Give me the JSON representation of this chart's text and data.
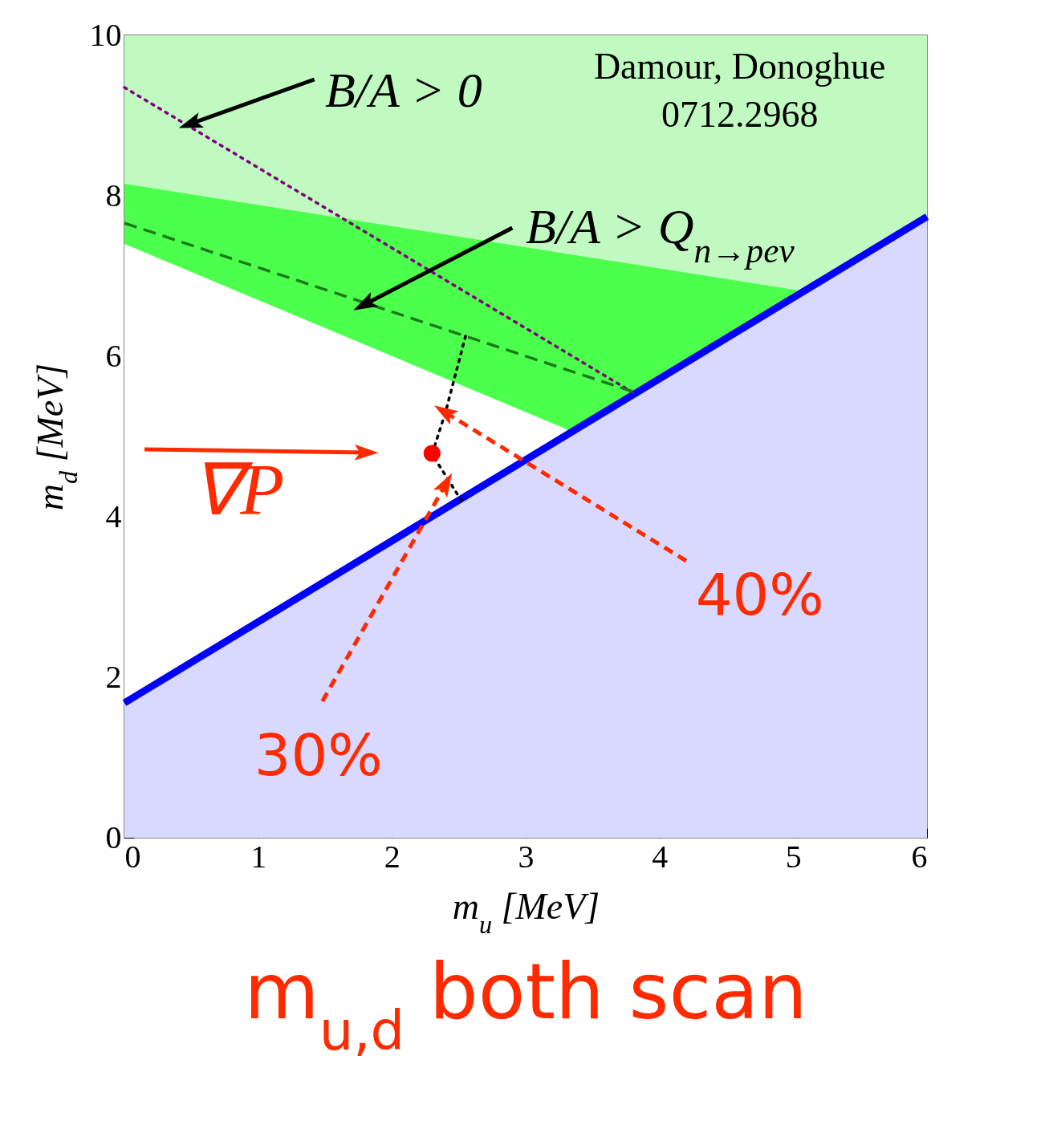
{
  "chart_data": {
    "type": "line",
    "title": "m$_{u,d}$ both scan",
    "xlabel": "m$_{u}$  [MeV]",
    "ylabel": "m$_{d}$  [MeV]",
    "xlim": [
      0,
      6
    ],
    "ylim": [
      0,
      10
    ],
    "xticks": [
      0,
      1,
      2,
      3,
      4,
      5,
      6
    ],
    "yticks": [
      0,
      2,
      4,
      6,
      8,
      10
    ],
    "grid": false,
    "series": [
      {
        "type": "area",
        "color": "#c0fac0",
        "x": [
          0,
          6
        ],
        "values": [
          10,
          10
        ]
      },
      {
        "type": "area",
        "color": "#4cff4c",
        "x": [
          0,
          5.08
        ],
        "values": [
          8.15,
          6.81
        ]
      },
      {
        "type": "area",
        "color": "#ffffff",
        "x": [
          0,
          3.35
        ],
        "values": [
          7.4,
          5.06
        ]
      },
      {
        "color": "#0000ff",
        "line_style": "solid",
        "x": [
          0,
          6
        ],
        "values": [
          1.68,
          7.74
        ],
        "lower": [
          0,
          0
        ],
        "upper": [
          1.68,
          7.74
        ]
      },
      {
        "color": "#800080",
        "line_style": "dotted",
        "x": [
          0,
          3.8
        ],
        "values": [
          9.35,
          5.55
        ]
      },
      {
        "color": "#1a7a1a",
        "line_style": "dashed",
        "x": [
          0,
          3.8
        ],
        "values": [
          7.66,
          5.56
        ]
      },
      {
        "color": "#000000",
        "line_style": "dotted",
        "x": [
          2.55,
          2.4,
          2.3,
          2.52
        ],
        "values": [
          6.25,
          5.3,
          4.78,
          4.2
        ]
      },
      {
        "type": "scatter",
        "color": "#ff0000",
        "marker": "circle",
        "x": [
          2.3
        ],
        "values": [
          4.79
        ]
      }
    ],
    "annotations": [
      {
        "text": "B/A > 0",
        "x": 0.5,
        "y": 8.9
      },
      {
        "text": "B/A > Q$_{n→peν}$",
        "x": 1.8,
        "y": 6.65
      },
      "Damour, Donoghue",
      "0712.2968",
      {
        "text": "∇P",
        "x": 1.8,
        "y": 4.8
      },
      {
        "text": "30%",
        "x": 2.4,
        "y": 4.4
      },
      {
        "text": "40%",
        "x": 2.4,
        "y": 5.3
      }
    ]
  }
}
